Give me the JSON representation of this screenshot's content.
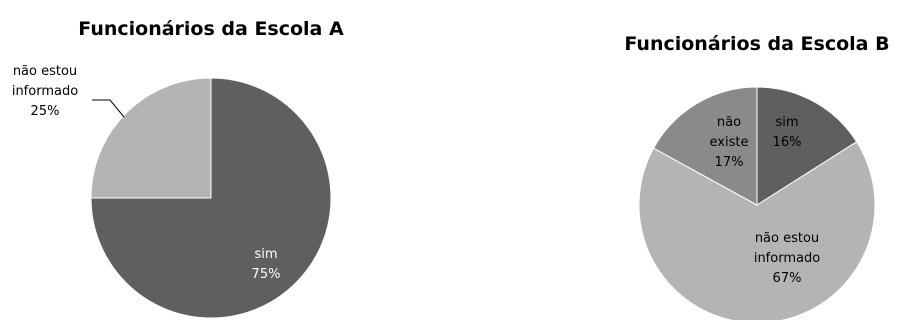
{
  "chart_data": [
    {
      "type": "pie",
      "title": "Funcionários da Escola A",
      "slices": [
        {
          "label": "sim",
          "value": 75,
          "value_label": "75%",
          "color": "#5f5f5f",
          "label_color": "#ffffff"
        },
        {
          "label": "não estou informado",
          "value": 25,
          "value_label": "25%",
          "color": "#b4b4b4",
          "label_color": "#000000"
        }
      ]
    },
    {
      "type": "pie",
      "title": "Funcionários da Escola B",
      "slices": [
        {
          "label": "sim",
          "value": 16,
          "value_label": "16%",
          "color": "#5f5f5f",
          "label_color": "#000000"
        },
        {
          "label": "não estou informado",
          "value": 67,
          "value_label": "67%",
          "color": "#b4b4b4",
          "label_color": "#000000"
        },
        {
          "label": "não existe",
          "value": 17,
          "value_label": "17%",
          "color": "#8a8a8a",
          "label_color": "#000000"
        }
      ]
    }
  ]
}
